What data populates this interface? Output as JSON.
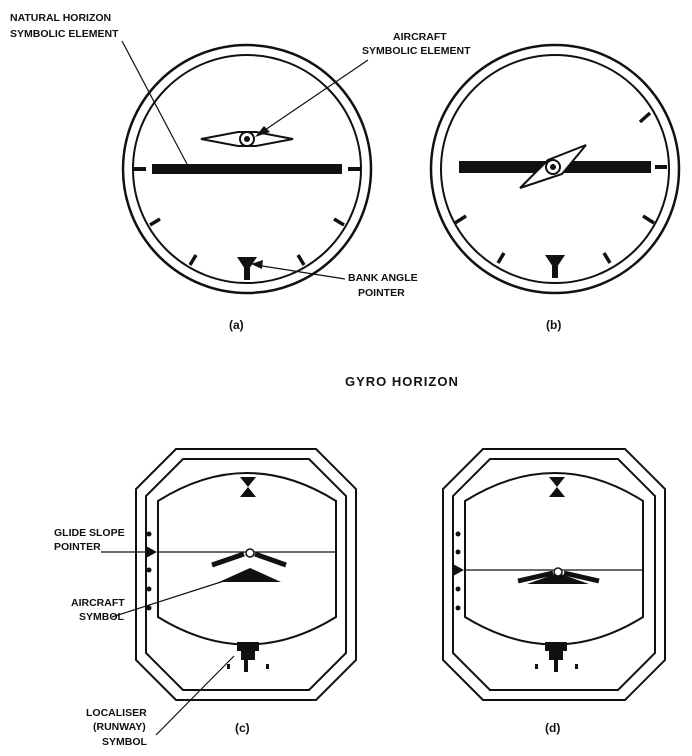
{
  "figure": {
    "title": "GYRO HORIZON",
    "captions": {
      "a": "(a)",
      "b": "(b)",
      "c": "(c)",
      "d": "(d)"
    },
    "labels": {
      "natural_horizon": [
        "NATURAL HORIZON",
        "SYMBOLIC ELEMENT"
      ],
      "aircraft_element": [
        "AIRCRAFT",
        "SYMBOLIC ELEMENT"
      ],
      "bank_angle": [
        "BANK ANGLE",
        "POINTER"
      ],
      "glide_slope": [
        "GLIDE SLOPE",
        "POINTER"
      ],
      "aircraft_symbol": [
        "AIRCRAFT",
        "SYMBOL"
      ],
      "localiser": [
        "LOCALISER",
        "(RUNWAY)",
        "SYMBOL"
      ]
    }
  }
}
